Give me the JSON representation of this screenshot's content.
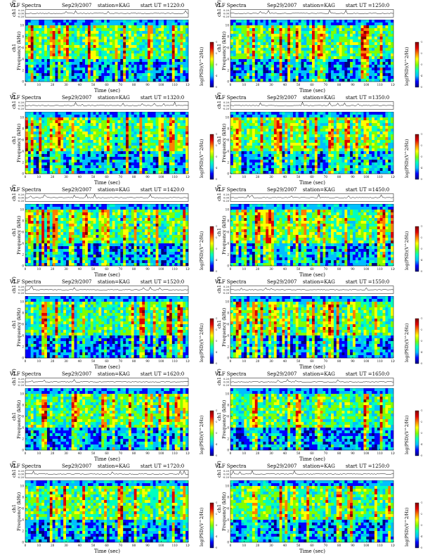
{
  "panels": [
    {
      "title": "VLF Spectra",
      "date": "Sep29/2007",
      "station": "station=KAG",
      "start": "start UT =1220:0"
    },
    {
      "title": "VLF Spectra",
      "date": "Sep29/2007",
      "station": "station=KAG",
      "start": "start UT =1250:0"
    },
    {
      "title": "VLF Spectra",
      "date": "Sep29/2007",
      "station": "station=KAG",
      "start": "start UT =1320:0"
    },
    {
      "title": "VLF Spectra",
      "date": "Sep29/2007",
      "station": "station=KAG",
      "start": "start UT =1350:0"
    },
    {
      "title": "VLF Spectra",
      "date": "Sep29/2007",
      "station": "station=KAG",
      "start": "start UT =1420:0"
    },
    {
      "title": "VLF Spectra",
      "date": "Sep29/2007",
      "station": "station=KAG",
      "start": "start UT =1450:0"
    },
    {
      "title": "VLF Spectra",
      "date": "Sep29/2007",
      "station": "station=KAG",
      "start": "start UT =1520:0"
    },
    {
      "title": "VLF Spectra",
      "date": "Sep29/2007",
      "station": "station=KAG",
      "start": "start UT =1550:0"
    },
    {
      "title": "VLF Spectra",
      "date": "Sep29/2007",
      "station": "station=KAG",
      "start": "start UT =1620:0"
    },
    {
      "title": "VLF Spectra",
      "date": "Sep29/2007",
      "station": "station=KAG",
      "start": "start UT =1650:0"
    },
    {
      "title": "VLF Spectra",
      "date": "Sep29/2007",
      "station": "station=KAG",
      "start": "start UT =1720:0"
    },
    {
      "title": "VLF Spectra",
      "date": "Sep29/2007",
      "station": "station=KAG",
      "start": "start UT =1250:0"
    }
  ],
  "chart_data": {
    "type": "heatmap",
    "xlabel": "Time (sec)",
    "ylabel_top": "ch1 (V)",
    "ylabel_bottom_line1": "ch1",
    "ylabel_bottom_line2": "Frequency (kHz)",
    "colorbar_label": "log(PSD)(V^2/Hz)",
    "x_ticks": [
      0,
      10,
      20,
      30,
      40,
      50,
      60,
      70,
      80,
      90,
      100,
      110,
      120
    ],
    "x_range": [
      0,
      120
    ],
    "y_ticks": [
      0,
      2,
      4,
      6,
      8,
      10
    ],
    "y_range": [
      0,
      11
    ],
    "ch1_ticks": [
      "0.20",
      "0.00",
      "-0.20"
    ],
    "colorbar_ticks": [
      "-1",
      "-2",
      "-3",
      "-4",
      "-5"
    ],
    "colormap": [
      "#00007f",
      "#0000ff",
      "#00bfff",
      "#00ffbf",
      "#7fff00",
      "#ffff00",
      "#ff7f00",
      "#e00000",
      "#7f0000"
    ]
  }
}
